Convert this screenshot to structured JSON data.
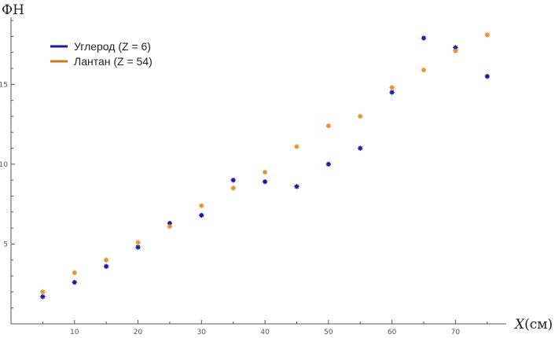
{
  "chart_data": {
    "type": "scatter",
    "ylabel": "ФН",
    "xlabel_var": "X",
    "xlabel_unit": "(см)",
    "xlim": [
      0,
      78
    ],
    "ylim": [
      0,
      19.2
    ],
    "xticks": [
      "10",
      "20",
      "30",
      "40",
      "50",
      "60",
      "70"
    ],
    "yticks": [
      "5",
      "10",
      "15"
    ],
    "grid": false,
    "legend_position": "top-left",
    "series": [
      {
        "name": "Углерод (Z = 6)",
        "color": "#1a1aa6",
        "x": [
          5,
          10,
          15,
          20,
          25,
          30,
          35,
          40,
          45,
          50,
          55,
          60,
          65,
          70,
          75
        ],
        "y": [
          1.7,
          2.6,
          3.6,
          4.8,
          6.3,
          6.8,
          9.0,
          8.9,
          8.6,
          10.0,
          11.0,
          14.5,
          17.9,
          17.3,
          15.5
        ]
      },
      {
        "name": "Лантан (Z = 54)",
        "color": "#e8922f",
        "x": [
          5,
          10,
          15,
          20,
          25,
          30,
          35,
          40,
          45,
          50,
          55,
          60,
          65,
          70,
          75
        ],
        "y": [
          2.0,
          3.2,
          4.0,
          5.1,
          6.1,
          7.4,
          8.5,
          9.5,
          11.1,
          12.4,
          13.0,
          14.8,
          15.9,
          17.1,
          18.1
        ]
      }
    ]
  }
}
